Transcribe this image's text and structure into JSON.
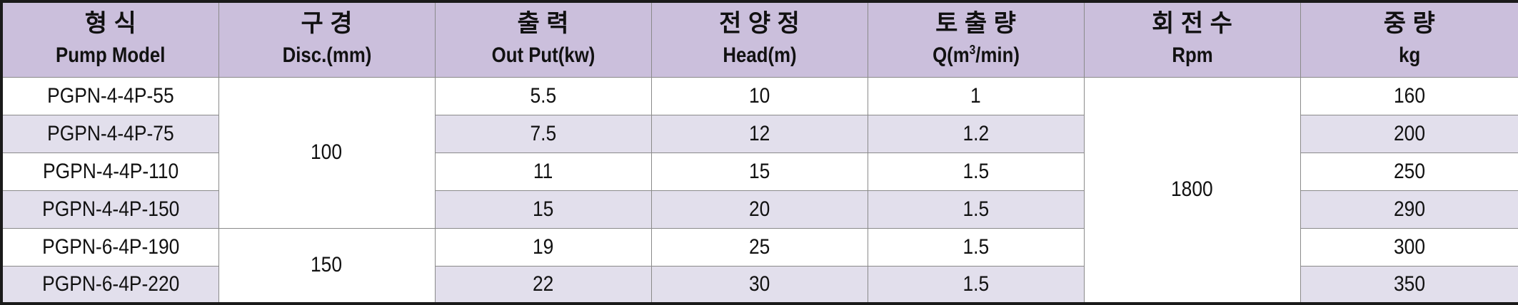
{
  "headers": [
    {
      "kr": "형        식",
      "en": "Pump Model"
    },
    {
      "kr": "구        경",
      "en": "Disc.(mm)"
    },
    {
      "kr": "출        력",
      "en": "Out Put(kw)"
    },
    {
      "kr": "전 양 정",
      "en": "Head(m)"
    },
    {
      "kr": "토 출 량",
      "en_pre": "Q(m",
      "en_sup": "3",
      "en_post": "/min)"
    },
    {
      "kr": "회 전 수",
      "en": "Rpm"
    },
    {
      "kr": "중   량",
      "en": "kg"
    }
  ],
  "rows": [
    {
      "model": "PGPN-4-4P-55",
      "output": "5.5",
      "head": "10",
      "flow": "1",
      "weight": "160"
    },
    {
      "model": "PGPN-4-4P-75",
      "output": "7.5",
      "head": "12",
      "flow": "1.2",
      "weight": "200"
    },
    {
      "model": "PGPN-4-4P-110",
      "output": "11",
      "head": "15",
      "flow": "1.5",
      "weight": "250"
    },
    {
      "model": "PGPN-4-4P-150",
      "output": "15",
      "head": "20",
      "flow": "1.5",
      "weight": "290"
    },
    {
      "model": "PGPN-6-4P-190",
      "output": "19",
      "head": "25",
      "flow": "1.5",
      "weight": "300"
    },
    {
      "model": "PGPN-6-4P-220",
      "output": "22",
      "head": "30",
      "flow": "1.5",
      "weight": "350"
    }
  ],
  "disc_groups": [
    "100",
    "150"
  ],
  "rpm": "1800"
}
